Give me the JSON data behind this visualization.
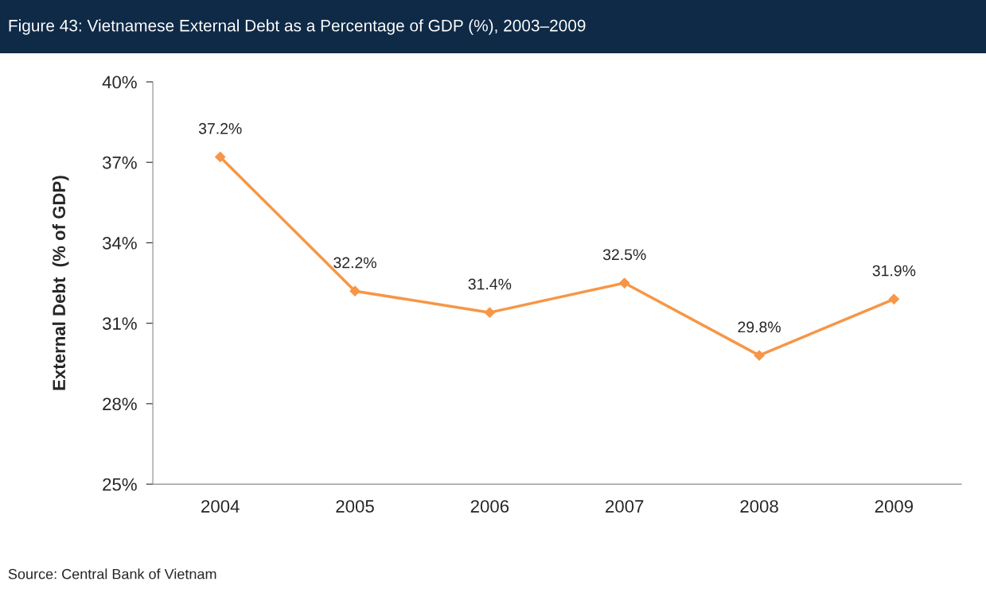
{
  "chart_data": {
    "type": "line",
    "title": "Figure 43: Vietnamese External Debt as a Percentage of GDP (%), 2003–2009",
    "ylabel": "External Debt  (% of GDP)",
    "categories": [
      "2004",
      "2005",
      "2006",
      "2007",
      "2008",
      "2009"
    ],
    "series": [
      {
        "color": "#f79646",
        "values": [
          37.2,
          32.2,
          31.4,
          32.5,
          29.8,
          31.9
        ],
        "value_labels": [
          "37.2%",
          "32.2%",
          "31.4%",
          "32.5%",
          "29.8%",
          "31.9%"
        ]
      }
    ],
    "ylim": [
      25,
      40
    ],
    "yticks": [
      {
        "value": 25,
        "label": "25%"
      },
      {
        "value": 28,
        "label": "28%"
      },
      {
        "value": 31,
        "label": "31%"
      },
      {
        "value": 34,
        "label": "34%"
      },
      {
        "value": 37,
        "label": "37%"
      },
      {
        "value": 40,
        "label": "40%"
      }
    ],
    "marker": "diamond",
    "line_style": "solid",
    "grid": false,
    "legend": false,
    "annotations": [
      "Source: Central Bank of Vietnam"
    ]
  }
}
